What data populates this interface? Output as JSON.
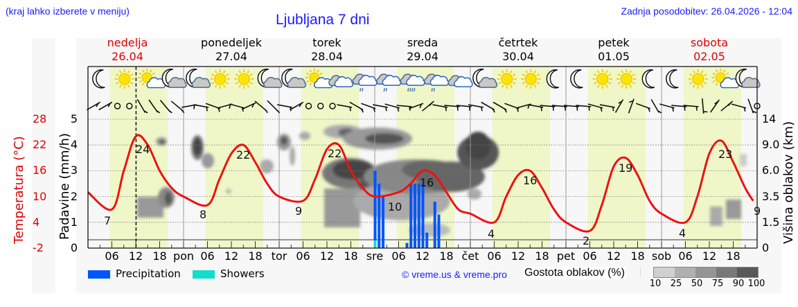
{
  "header": {
    "note": "(kraj lahko izberete v meniju)",
    "title": "Ljubljana 7 dni",
    "updated": "Zadnja posodobitev: 26.04.2026 - 12:04"
  },
  "days": [
    {
      "name": "nedelja",
      "date": "26.04",
      "weekend": true
    },
    {
      "name": "ponedeljek",
      "date": "27.04",
      "weekend": false
    },
    {
      "name": "torek",
      "date": "28.04",
      "weekend": false
    },
    {
      "name": "sreda",
      "date": "29.04",
      "weekend": false
    },
    {
      "name": "četrtek",
      "date": "30.04",
      "weekend": false
    },
    {
      "name": "petek",
      "date": "01.05",
      "weekend": false
    },
    {
      "name": "sobota",
      "date": "02.05",
      "weekend": true
    }
  ],
  "axes": {
    "temp_label": "Temperatura (°C)",
    "precip_label": "Padavine (mm/h)",
    "cloud_label": "Višina oblakov (km)",
    "temp_ticks": [
      "28",
      "22",
      "16",
      "10",
      "4",
      "-2"
    ],
    "precip_ticks": [
      "5",
      "4",
      "3",
      "2",
      "1",
      "0"
    ],
    "cloud_ticks": [
      "14",
      "9.0",
      "6.0",
      "3.5",
      "1.5",
      "0"
    ],
    "x_ticks": [
      "06",
      "12",
      "18",
      "pon",
      "06",
      "12",
      "18",
      "tor",
      "06",
      "12",
      "18",
      "sre",
      "06",
      "12",
      "18",
      "čet",
      "06",
      "12",
      "18",
      "pet",
      "06",
      "12",
      "18",
      "sob",
      "06",
      "12",
      "18"
    ]
  },
  "legend": {
    "precipitation": "Precipitation",
    "showers": "Showers",
    "precipitation_color": "#0055ff",
    "showers_color": "#11ddcc",
    "copyright": "© vreme.us & vreme.pro",
    "cloud_density_label": "Gostota oblakov (%)",
    "cloud_density_scale": [
      "10",
      "25",
      "50",
      "75",
      "90",
      "100"
    ]
  },
  "weather_icons": [
    "moon",
    "sun",
    "sun-cloud",
    "moon-cloud",
    "moon-cloud",
    "sun",
    "sun",
    "moon-cloud",
    "moon-cloud",
    "sun-cloud",
    "cloud",
    "cloud-rain",
    "cloud-rain",
    "cloud-rain",
    "cloud-rain",
    "cloud",
    "moon-cloud",
    "sun",
    "sun",
    "moon",
    "moon",
    "sun",
    "sun",
    "moon",
    "moon",
    "sun",
    "sun-cloud",
    "moon-cloud"
  ],
  "chart_data": {
    "type": "line",
    "title": "Ljubljana 7 dni",
    "xlabel": "",
    "ylabel": "Temperatura (°C)",
    "ylim_temp": [
      -2,
      31
    ],
    "ylim_precip": [
      0,
      5.3
    ],
    "current_time_marker": "26.04 12:04",
    "x_hours": [
      0,
      6,
      9,
      12,
      15,
      18,
      21,
      24,
      30,
      33,
      36,
      39,
      42,
      45,
      48,
      54,
      57,
      60,
      63,
      66,
      69,
      72,
      78,
      81,
      84,
      87,
      90,
      93,
      96,
      102,
      105,
      108,
      111,
      114,
      117,
      120,
      126,
      129,
      132,
      135,
      138,
      141,
      144,
      150,
      153,
      156,
      159,
      162,
      165,
      167
    ],
    "series": [
      {
        "name": "Temperatura",
        "color": "#ee1111",
        "values": [
          11,
          7,
          16,
          24,
          22,
          16,
          12,
          10,
          8,
          14,
          20,
          22,
          18,
          13,
          10,
          9,
          14,
          21,
          22,
          16,
          12,
          10,
          11,
          13,
          16,
          15,
          11,
          7,
          6,
          4,
          10,
          15,
          16,
          12,
          7,
          4,
          2,
          8,
          17,
          19,
          15,
          9,
          6,
          4,
          10,
          20,
          23,
          18,
          12,
          9
        ]
      }
    ],
    "temp_labels": [
      {
        "day": 0,
        "min": 7,
        "max": 24
      },
      {
        "day": 1,
        "min": 8,
        "max": 22
      },
      {
        "day": 2,
        "min": 9,
        "max": 22
      },
      {
        "day": 3,
        "min": 10,
        "max": 16
      },
      {
        "day": 4,
        "min": 4,
        "max": 16
      },
      {
        "day": 5,
        "min": 2,
        "max": 19
      },
      {
        "day": 6,
        "min": 4,
        "max": 23
      },
      {
        "day": 7,
        "min": 9,
        "max": null
      }
    ],
    "precipitation_bars": [
      {
        "hour": 72,
        "mm": 3.0,
        "shower": 0.3
      },
      {
        "hour": 73,
        "mm": 2.5
      },
      {
        "hour": 74,
        "mm": 2.0
      },
      {
        "hour": 80,
        "mm": 0.2
      },
      {
        "hour": 81,
        "mm": 2.5
      },
      {
        "hour": 82,
        "mm": 2.5
      },
      {
        "hour": 83,
        "mm": 2.5
      },
      {
        "hour": 84,
        "mm": 2.5
      },
      {
        "hour": 85,
        "mm": 0.6
      },
      {
        "hour": 87,
        "mm": 1.8
      },
      {
        "hour": 88,
        "mm": 1.3
      }
    ]
  }
}
